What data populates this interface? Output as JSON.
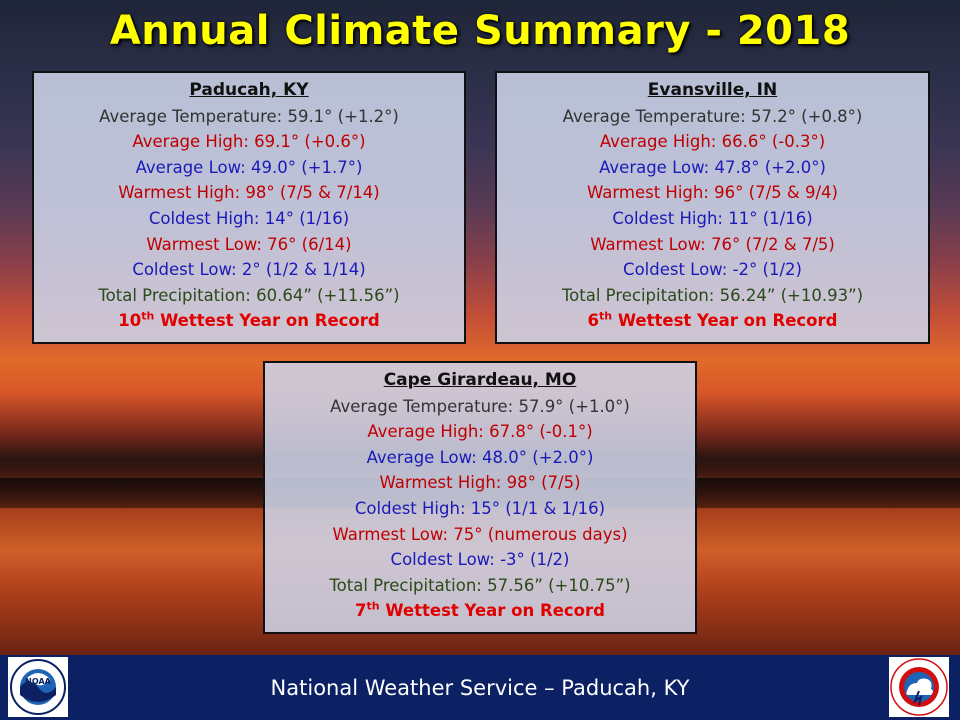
{
  "title": "Annual Climate Summary - 2018",
  "stations": {
    "paducah": {
      "name": "Paducah, KY",
      "avg_temp": "Average Temperature: 59.1° (+1.2°)",
      "avg_high": "Average High: 69.1° (+0.6°)",
      "avg_low": "Average Low: 49.0° (+1.7°)",
      "warmest_high": "Warmest High: 98° (7/5 & 7/14)",
      "coldest_high": "Coldest High: 14° (1/16)",
      "warmest_low": "Warmest Low: 76° (6/14)",
      "coldest_low": "Coldest Low: 2° (1/2 & 1/14)",
      "precip": "Total Precipitation: 60.64” (+11.56”)",
      "rank_num": "10",
      "rank_sup": "th",
      "rank_text": " Wettest Year on Record"
    },
    "evansville": {
      "name": "Evansville, IN",
      "avg_temp": "Average Temperature: 57.2° (+0.8°)",
      "avg_high": "Average High: 66.6° (-0.3°)",
      "avg_low": "Average Low: 47.8° (+2.0°)",
      "warmest_high": "Warmest High: 96° (7/5 & 9/4)",
      "coldest_high": "Coldest High: 11° (1/16)",
      "warmest_low": "Warmest Low: 76° (7/2 & 7/5)",
      "coldest_low": "Coldest Low: -2° (1/2)",
      "precip": "Total Precipitation: 56.24” (+10.93”)",
      "rank_num": "6",
      "rank_sup": "th",
      "rank_text": " Wettest Year on Record"
    },
    "cape": {
      "name": "Cape Girardeau, MO",
      "avg_temp": "Average Temperature: 57.9° (+1.0°)",
      "avg_high": "Average High: 67.8° (-0.1°)",
      "avg_low": "Average Low: 48.0° (+2.0°)",
      "warmest_high": "Warmest High: 98° (7/5)",
      "coldest_high": "Coldest High: 15° (1/1 & 1/16)",
      "warmest_low": "Warmest Low: 75° (numerous days)",
      "coldest_low": "Coldest Low: -3° (1/2)",
      "precip": "Total Precipitation: 57.56” (+10.75”)",
      "rank_num": "7",
      "rank_sup": "th",
      "rank_text": " Wettest Year on Record"
    }
  },
  "footer": {
    "text": "National Weather Service – Paducah, KY",
    "noaa_logo_text": "NOAA",
    "nws_logo_text": "NATIONAL WEATHER SERVICE"
  },
  "colors": {
    "title": "#ffff00",
    "footer_bg": "#0b2164",
    "high_red": "#c00000",
    "low_blue": "#1a1ab8",
    "precip_green": "#2a4a1a"
  }
}
